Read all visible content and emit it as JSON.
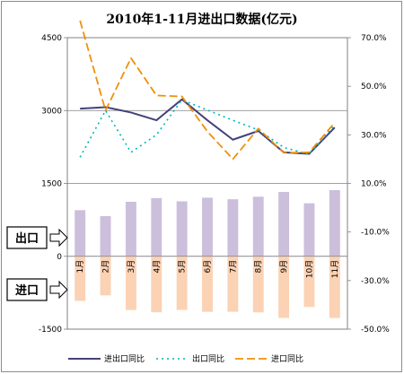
{
  "chart_data": {
    "type": "bar",
    "title": "2010年1-11月进出口数据(亿元)",
    "categories": [
      "1月",
      "2月",
      "3月",
      "4月",
      "5月",
      "6月",
      "7月",
      "8月",
      "9月",
      "10月",
      "11月"
    ],
    "left_axis": {
      "ticks": [
        4500,
        3000,
        1500,
        0,
        -1500
      ],
      "tick_labels": [
        "4500",
        "3000",
        "1500",
        "0",
        "-1500"
      ],
      "ylim": [
        -1500,
        4500
      ]
    },
    "right_axis": {
      "ticks": [
        70,
        50,
        30,
        10,
        -10,
        -30,
        -50
      ],
      "tick_labels": [
        "70.0%",
        "50.0%",
        "30.0%",
        "10.0%",
        "-10.0%",
        "-30.0%",
        "-50.0%"
      ],
      "ylim": [
        -50,
        70
      ]
    },
    "bar_series": [
      {
        "name": "出口",
        "color": "#cbbfdc",
        "values": [
          949,
          826,
          1122,
          1198,
          1131,
          1206,
          1174,
          1226,
          1324,
          1091,
          1361
        ]
      },
      {
        "name": "进口",
        "color": "#fbd2b4",
        "values": [
          -918,
          -805,
          -1105,
          -1153,
          -1104,
          -1143,
          -1142,
          -1155,
          -1269,
          -1044,
          -1270
        ]
      }
    ],
    "line_series": [
      {
        "name": "进出口同比",
        "color": "#44427a",
        "style": "solid",
        "axis": "left",
        "values": [
          3040,
          3070,
          2960,
          2800,
          3230,
          2800,
          2400,
          2580,
          2140,
          2110,
          2650
        ]
      },
      {
        "name": "出口同比",
        "color": "#00b5b8",
        "style": "dotted",
        "axis": "left",
        "values": [
          2040,
          3000,
          2140,
          2500,
          3220,
          3010,
          2800,
          2600,
          2240,
          2100,
          2700
        ]
      },
      {
        "name": "进口同比",
        "color": "#f0900a",
        "style": "dashed",
        "axis": "left",
        "values": [
          4850,
          3000,
          4080,
          3310,
          3290,
          2570,
          2000,
          2630,
          2130,
          2140,
          2750
        ]
      }
    ],
    "callouts": [
      {
        "label": "出口",
        "refers_to": "出口"
      },
      {
        "label": "进口",
        "refers_to": "进口"
      }
    ],
    "legend": {
      "placement": "bottom",
      "items": [
        "进出口同比",
        "出口同比",
        "进口同比"
      ]
    },
    "grid": "horizontal"
  }
}
